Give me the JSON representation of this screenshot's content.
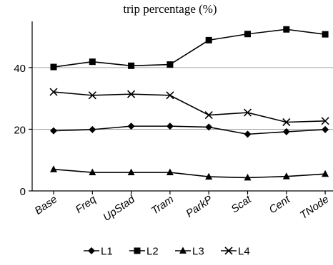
{
  "chart_data": {
    "type": "line",
    "title": "trip percentage (%)",
    "xlabel": "",
    "ylabel": "",
    "categories": [
      "Base",
      "Freq",
      "UpStad",
      "Tram",
      "ParkP",
      "Scat",
      "Cent",
      "TNode"
    ],
    "ylim": [
      0,
      55
    ],
    "yticks": [
      0,
      20,
      40
    ],
    "grid": true,
    "legend": "bottom",
    "series": [
      {
        "name": "L1",
        "marker": "diamond",
        "values": [
          19.5,
          19.9,
          21.0,
          21.0,
          20.7,
          18.4,
          19.2,
          19.9
        ]
      },
      {
        "name": "L2",
        "marker": "square",
        "values": [
          40.2,
          41.9,
          40.6,
          41.0,
          48.9,
          50.9,
          52.4,
          50.8
        ]
      },
      {
        "name": "L3",
        "marker": "triangle",
        "values": [
          7.0,
          6.0,
          6.0,
          6.0,
          4.6,
          4.3,
          4.7,
          5.5
        ]
      },
      {
        "name": "L4",
        "marker": "x",
        "values": [
          32.1,
          31.0,
          31.4,
          31.0,
          24.6,
          25.4,
          22.3,
          22.7
        ]
      }
    ]
  }
}
